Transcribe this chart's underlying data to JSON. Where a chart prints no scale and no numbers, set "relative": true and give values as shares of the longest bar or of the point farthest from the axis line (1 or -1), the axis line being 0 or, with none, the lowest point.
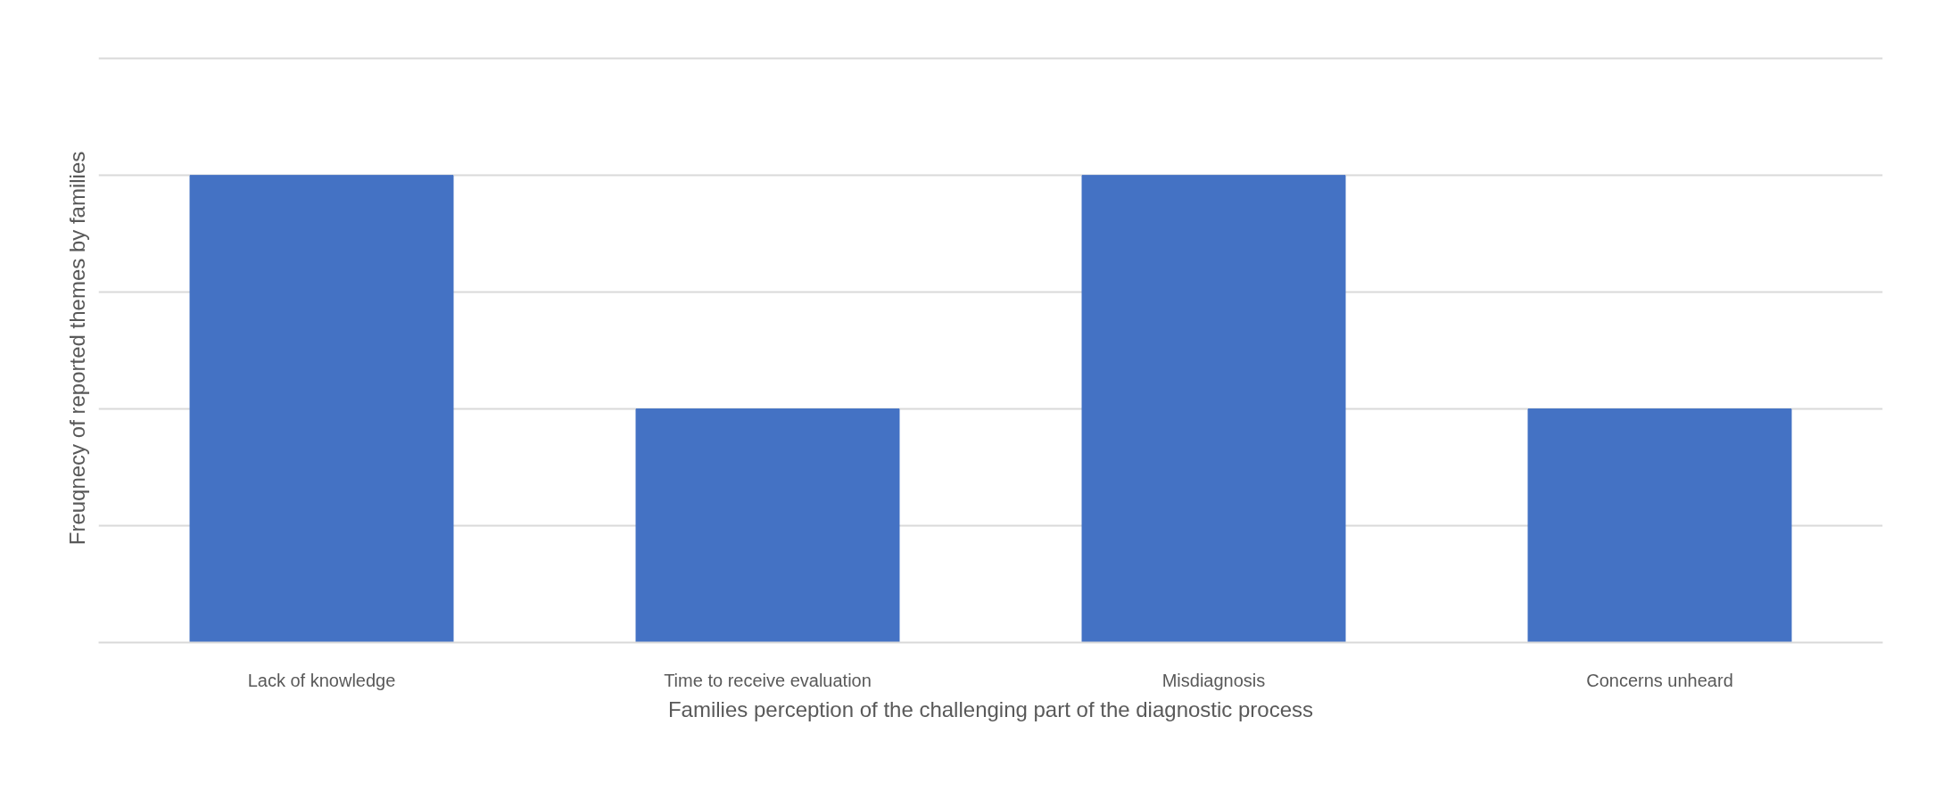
{
  "chart_data": {
    "type": "bar",
    "relative": true,
    "xlabel": "Families perception of the challenging part of the diagnostic process",
    "ylabel": "Freuqnecy of reported themes by families",
    "categories": [
      "Lack of knowledge",
      "Time to receive evaluation",
      "Misdiagnosis",
      "Concerns unheard"
    ],
    "values": [
      1,
      0.5,
      1,
      0.5
    ],
    "color": "#4472c4",
    "grid": "y"
  }
}
